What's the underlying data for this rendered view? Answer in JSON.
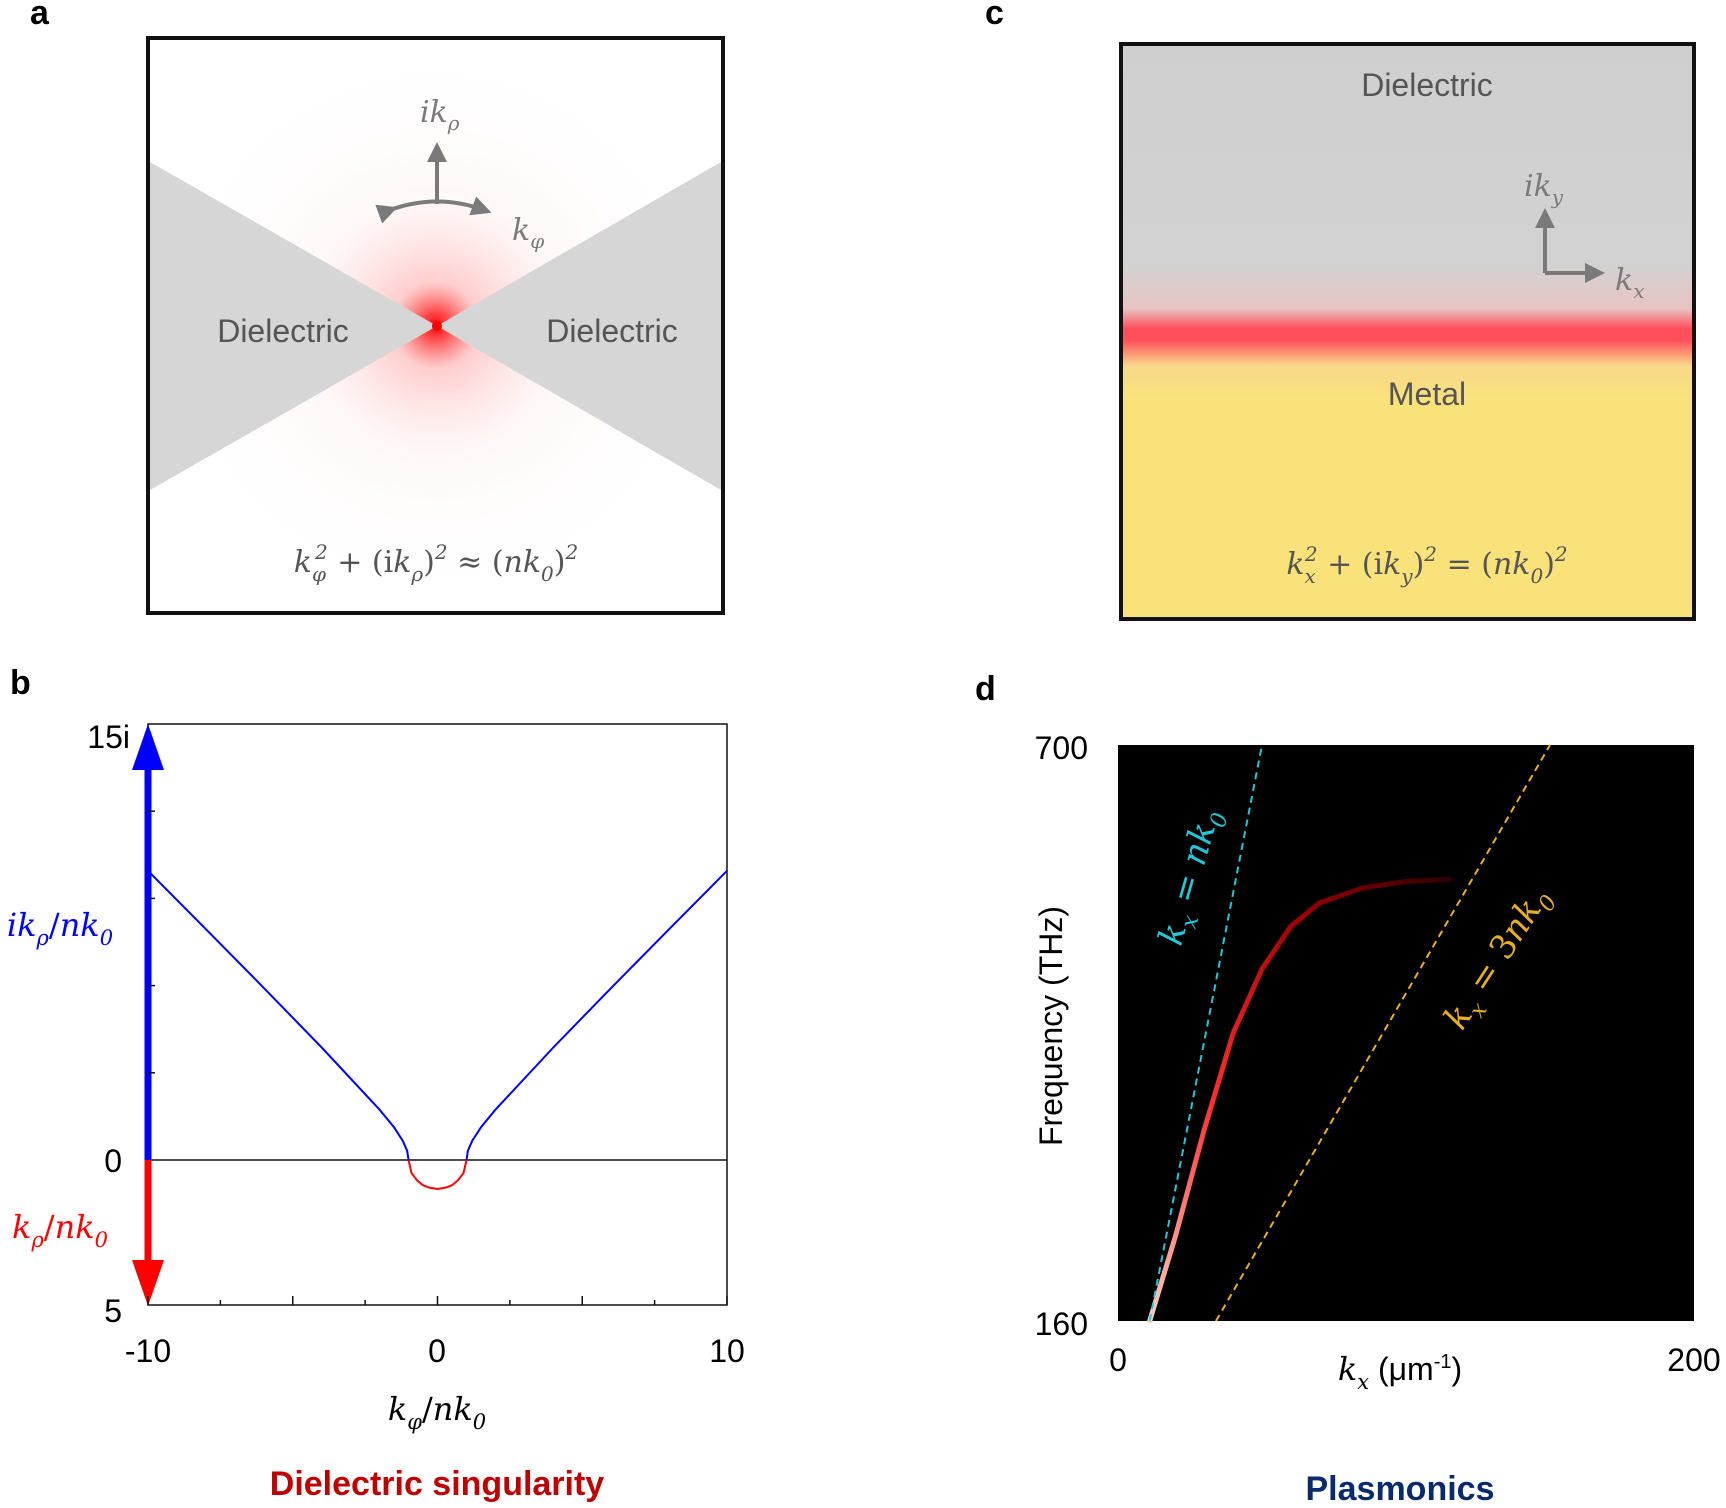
{
  "panels": {
    "a": {
      "letter": "a",
      "left_label": "Dielectric",
      "right_label": "Dielectric",
      "axis_up_label": "ik_ρ",
      "axis_phi_label": "k_φ",
      "equation": "k_φ^2 + (ik_ρ)^2 ≈ (nk_0)^2"
    },
    "b": {
      "letter": "b",
      "caption": "Dielectric singularity",
      "caption_color": "#c00000"
    },
    "c": {
      "letter": "c",
      "top_label": "Dielectric",
      "bottom_label": "Metal",
      "axis_up_label": "ik_y",
      "axis_x_label": "k_x",
      "equation": "k_x^2 + (ik_y)^2 = (nk_0)^2"
    },
    "d": {
      "letter": "d",
      "caption": "Plasmonics",
      "caption_color": "#0a2a6e"
    }
  },
  "colors": {
    "imag_blue": "#0000ff",
    "real_red": "#ff0000",
    "dielectric_gray": "#d6d6d6",
    "metal_yellow": "#f9e27a",
    "light_line_cyan": "#22c8d8",
    "line3_orange": "#e8b020"
  },
  "chart_data": [
    {
      "panel": "b",
      "type": "line",
      "xlabel": "k_φ/nk_0",
      "ylabel_imag": "ik_ρ/nk_0",
      "ylabel_real": "k_ρ/nk_0",
      "xlim": [
        -10,
        10
      ],
      "ylim_imag": [
        0,
        15
      ],
      "ylim_real": [
        0,
        5
      ],
      "x_ticks": [
        "-10",
        "0",
        "10"
      ],
      "y_top_tick": "15i",
      "y_zero_tick": "0",
      "y_bottom_tick": "5",
      "series": [
        {
          "part": "imag",
          "color": "#0000ff",
          "x": [
            -10,
            -8,
            -6,
            -4,
            -2,
            -1.5,
            -1.2,
            -1.05,
            -1,
            1,
            1.05,
            1.2,
            1.5,
            2,
            4,
            6,
            8,
            10
          ],
          "y": [
            9.95,
            7.94,
            5.92,
            3.87,
            1.73,
            1.12,
            0.66,
            0.32,
            0,
            0,
            0.32,
            0.66,
            1.12,
            1.73,
            3.87,
            5.92,
            7.94,
            9.95
          ]
        },
        {
          "part": "real",
          "color": "#ff0000",
          "x": [
            -1,
            -0.9,
            -0.7,
            -0.5,
            -0.3,
            0,
            0.3,
            0.5,
            0.7,
            0.9,
            1
          ],
          "y": [
            0,
            0.44,
            0.71,
            0.87,
            0.95,
            1.0,
            0.95,
            0.87,
            0.71,
            0.44,
            0
          ]
        }
      ]
    },
    {
      "panel": "d",
      "type": "heatmap",
      "xlabel": "k_x (μm-1)",
      "ylabel": "Frequency (THz)",
      "xlim": [
        0,
        200
      ],
      "ylim": [
        160,
        700
      ],
      "x_ticks": [
        "0",
        "200"
      ],
      "y_ticks": [
        "160",
        "700"
      ],
      "background": "#000000",
      "lines": [
        {
          "label": "k_x = nk_0",
          "color": "#22c8d8",
          "style": "dashed",
          "x": [
            11,
            50
          ],
          "y": [
            160,
            700
          ]
        },
        {
          "label": "k_x = 3nk_0",
          "color": "#e8b020",
          "style": "dashed",
          "x": [
            34,
            150
          ],
          "y": [
            160,
            700
          ]
        }
      ],
      "dispersion_curve": {
        "x": [
          11,
          20,
          30,
          40,
          50,
          60,
          70,
          85,
          100,
          115
        ],
        "y": [
          160,
          240,
          340,
          430,
          490,
          530,
          552,
          566,
          572,
          574
        ]
      }
    }
  ]
}
